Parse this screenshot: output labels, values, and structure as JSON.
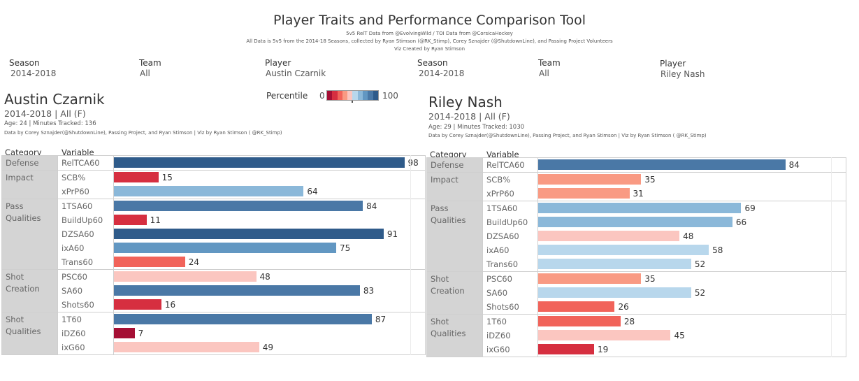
{
  "header": {
    "title": "Player Traits and Performance Comparison Tool",
    "subtitle_lines": [
      "5v5 RelT Data from @EvolvingWild / TOI Data from @CorsicaHockey",
      "All Data is 5v5 from the 2014-18 Seasons, collected by Ryan Stimson (@RK_Stimp), Corey Sznajder (@ShutdownLine), and Passing Project Volunteers",
      "Viz Created by Ryan Stimson"
    ]
  },
  "filters": [
    {
      "label": "Season",
      "value": "2014-2018"
    },
    {
      "label": "Team",
      "value": "All"
    },
    {
      "label": "Player",
      "value": "Austin Czarnik"
    },
    {
      "label": "Season",
      "value": "2014-2018"
    },
    {
      "label": "Team",
      "value": "All"
    },
    {
      "label": "Player",
      "value": "Riley Nash"
    }
  ],
  "legend": {
    "title": "Percentile",
    "min_label": "0",
    "max_label": "100",
    "colors": [
      "#a50f34",
      "#d62f40",
      "#f1635a",
      "#f99a83",
      "#fbc6c0",
      "#b8d7ec",
      "#8bb8d9",
      "#6297c2",
      "#4a78a6",
      "#2f5b8a"
    ]
  },
  "columns": {
    "category": "Category",
    "variable": "Variable"
  },
  "chart_data": [
    {
      "type": "bar",
      "orientation": "horizontal",
      "title": "Austin Czarnik",
      "season_team": "2014-2018 | All (F)",
      "meta": "Age: 24 | Minutes Tracked: 136",
      "credit": "Data by Corey Sznajder(@ShutdownLine), Passing Project, and Ryan Stimson | Viz by Ryan Stimson ( @RK_Stimp)",
      "xlim": [
        0,
        100
      ],
      "groups": [
        {
          "category_lines": [
            "Defense"
          ],
          "rows": [
            {
              "variable": "RelTCA60",
              "value": 98
            }
          ]
        },
        {
          "category_lines": [
            "Impact"
          ],
          "rows": [
            {
              "variable": "SCB%",
              "value": 15
            },
            {
              "variable": "xPrP60",
              "value": 64
            }
          ]
        },
        {
          "category_lines": [
            "Pass",
            "Qualities"
          ],
          "rows": [
            {
              "variable": "1TSA60",
              "value": 84
            },
            {
              "variable": "BuildUp60",
              "value": 11
            },
            {
              "variable": "DZSA60",
              "value": 91
            },
            {
              "variable": "ixA60",
              "value": 75
            },
            {
              "variable": "Trans60",
              "value": 24
            }
          ]
        },
        {
          "category_lines": [
            "Shot",
            "Creation"
          ],
          "rows": [
            {
              "variable": "PSC60",
              "value": 48
            },
            {
              "variable": "SA60",
              "value": 83
            },
            {
              "variable": "Shots60",
              "value": 16
            }
          ]
        },
        {
          "category_lines": [
            "Shot",
            "Qualities"
          ],
          "rows": [
            {
              "variable": "1T60",
              "value": 87
            },
            {
              "variable": "iDZ60",
              "value": 7
            },
            {
              "variable": "ixG60",
              "value": 49
            }
          ]
        }
      ]
    },
    {
      "type": "bar",
      "orientation": "horizontal",
      "title": "Riley Nash",
      "season_team": "2014-2018 | All (F)",
      "meta": "Age: 29 | Minutes Tracked: 1030",
      "credit": "Data by Corey Sznajder(@ShutdownLine), Passing Project, and Ryan Stimson | Viz by Ryan Stimson ( @RK_Stimp)",
      "xlim": [
        0,
        100
      ],
      "groups": [
        {
          "category_lines": [
            "Defense"
          ],
          "rows": [
            {
              "variable": "RelTCA60",
              "value": 84
            }
          ]
        },
        {
          "category_lines": [
            "Impact"
          ],
          "rows": [
            {
              "variable": "SCB%",
              "value": 35
            },
            {
              "variable": "xPrP60",
              "value": 31
            }
          ]
        },
        {
          "category_lines": [
            "Pass",
            "Qualities"
          ],
          "rows": [
            {
              "variable": "1TSA60",
              "value": 69
            },
            {
              "variable": "BuildUp60",
              "value": 66
            },
            {
              "variable": "DZSA60",
              "value": 48
            },
            {
              "variable": "ixA60",
              "value": 58
            },
            {
              "variable": "Trans60",
              "value": 52
            }
          ]
        },
        {
          "category_lines": [
            "Shot",
            "Creation"
          ],
          "rows": [
            {
              "variable": "PSC60",
              "value": 35
            },
            {
              "variable": "SA60",
              "value": 52
            },
            {
              "variable": "Shots60",
              "value": 26
            }
          ]
        },
        {
          "category_lines": [
            "Shot",
            "Qualities"
          ],
          "rows": [
            {
              "variable": "1T60",
              "value": 28
            },
            {
              "variable": "iDZ60",
              "value": 45
            },
            {
              "variable": "ixG60",
              "value": 19
            }
          ]
        }
      ]
    }
  ]
}
